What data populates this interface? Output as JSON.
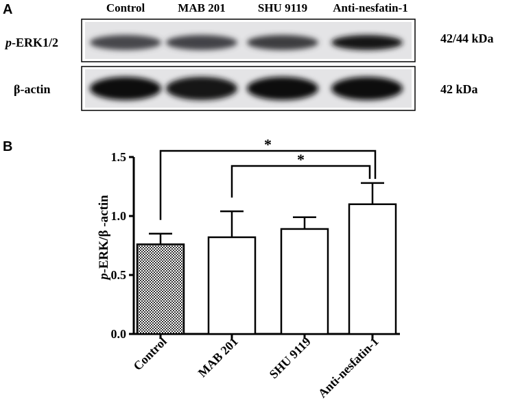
{
  "panel_a": {
    "label": "A",
    "lane_labels": [
      "Control",
      "MAB 201",
      "SHU 9119",
      "Anti-nesfatin-1"
    ],
    "blots": [
      {
        "label_italic": "p",
        "label_rest": "-ERK1/2",
        "size": "42/44 kDa",
        "band_intensity": [
          0.72,
          0.74,
          0.76,
          0.92
        ]
      },
      {
        "label_italic": "",
        "label_rest": "β-actin",
        "size": "42 kDa",
        "band_intensity": [
          0.97,
          0.93,
          0.96,
          0.97
        ]
      }
    ]
  },
  "panel_b": {
    "label": "B"
  },
  "chart_data": {
    "type": "bar",
    "categories": [
      "Control",
      "MAB 201",
      "SHU 9119",
      "Anti-nesfatin-1"
    ],
    "values": [
      0.76,
      0.82,
      0.89,
      1.1
    ],
    "errors": [
      0.09,
      0.22,
      0.1,
      0.18
    ],
    "ylabel_italic": "p",
    "ylabel_rest": "-ERK/β -actin",
    "ylim": [
      0,
      1.5
    ],
    "yticks": [
      "0.0",
      "0.5",
      "1.0",
      "1.5"
    ],
    "ytick_values": [
      0,
      0.5,
      1.0,
      1.5
    ],
    "fills": [
      "checkered",
      "white",
      "white",
      "white"
    ],
    "significance": [
      {
        "from": 0,
        "to": 3,
        "label": "*"
      },
      {
        "from": 1,
        "to": 3,
        "label": "*"
      }
    ]
  }
}
